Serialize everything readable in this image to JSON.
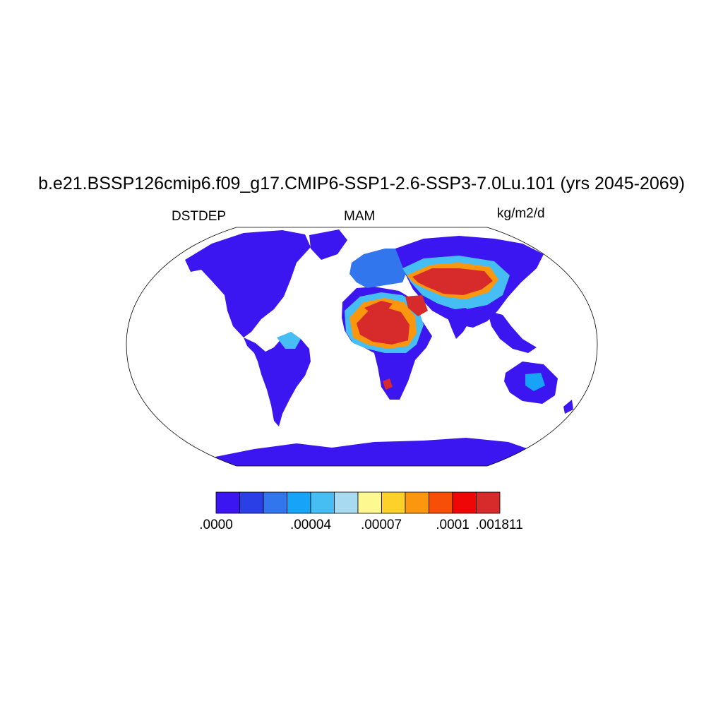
{
  "title": "b.e21.BSSP126cmip6.f09_g17.CMIP6-SSP1-2.6-SSP3-7.0Lu.101 (yrs 2045-2069)",
  "left_label": "DSTDEP",
  "center_label": "MAM",
  "units": "kg/m2/d",
  "colorbar": {
    "colors": [
      "#3b16f0",
      "#2a3fe6",
      "#3276ee",
      "#16a3f8",
      "#46bef4",
      "#a8dbf1",
      "#fdf88f",
      "#fdd12a",
      "#fb960f",
      "#f74f08",
      "#ef0707",
      "#d72b2b"
    ],
    "labels": [
      ".0000",
      ".00004",
      ".00007",
      ".0001",
      ".001811"
    ]
  },
  "colors": {
    "land_background": "#3b16f0",
    "ocean": "#ffffff",
    "coastline": "#000000"
  }
}
